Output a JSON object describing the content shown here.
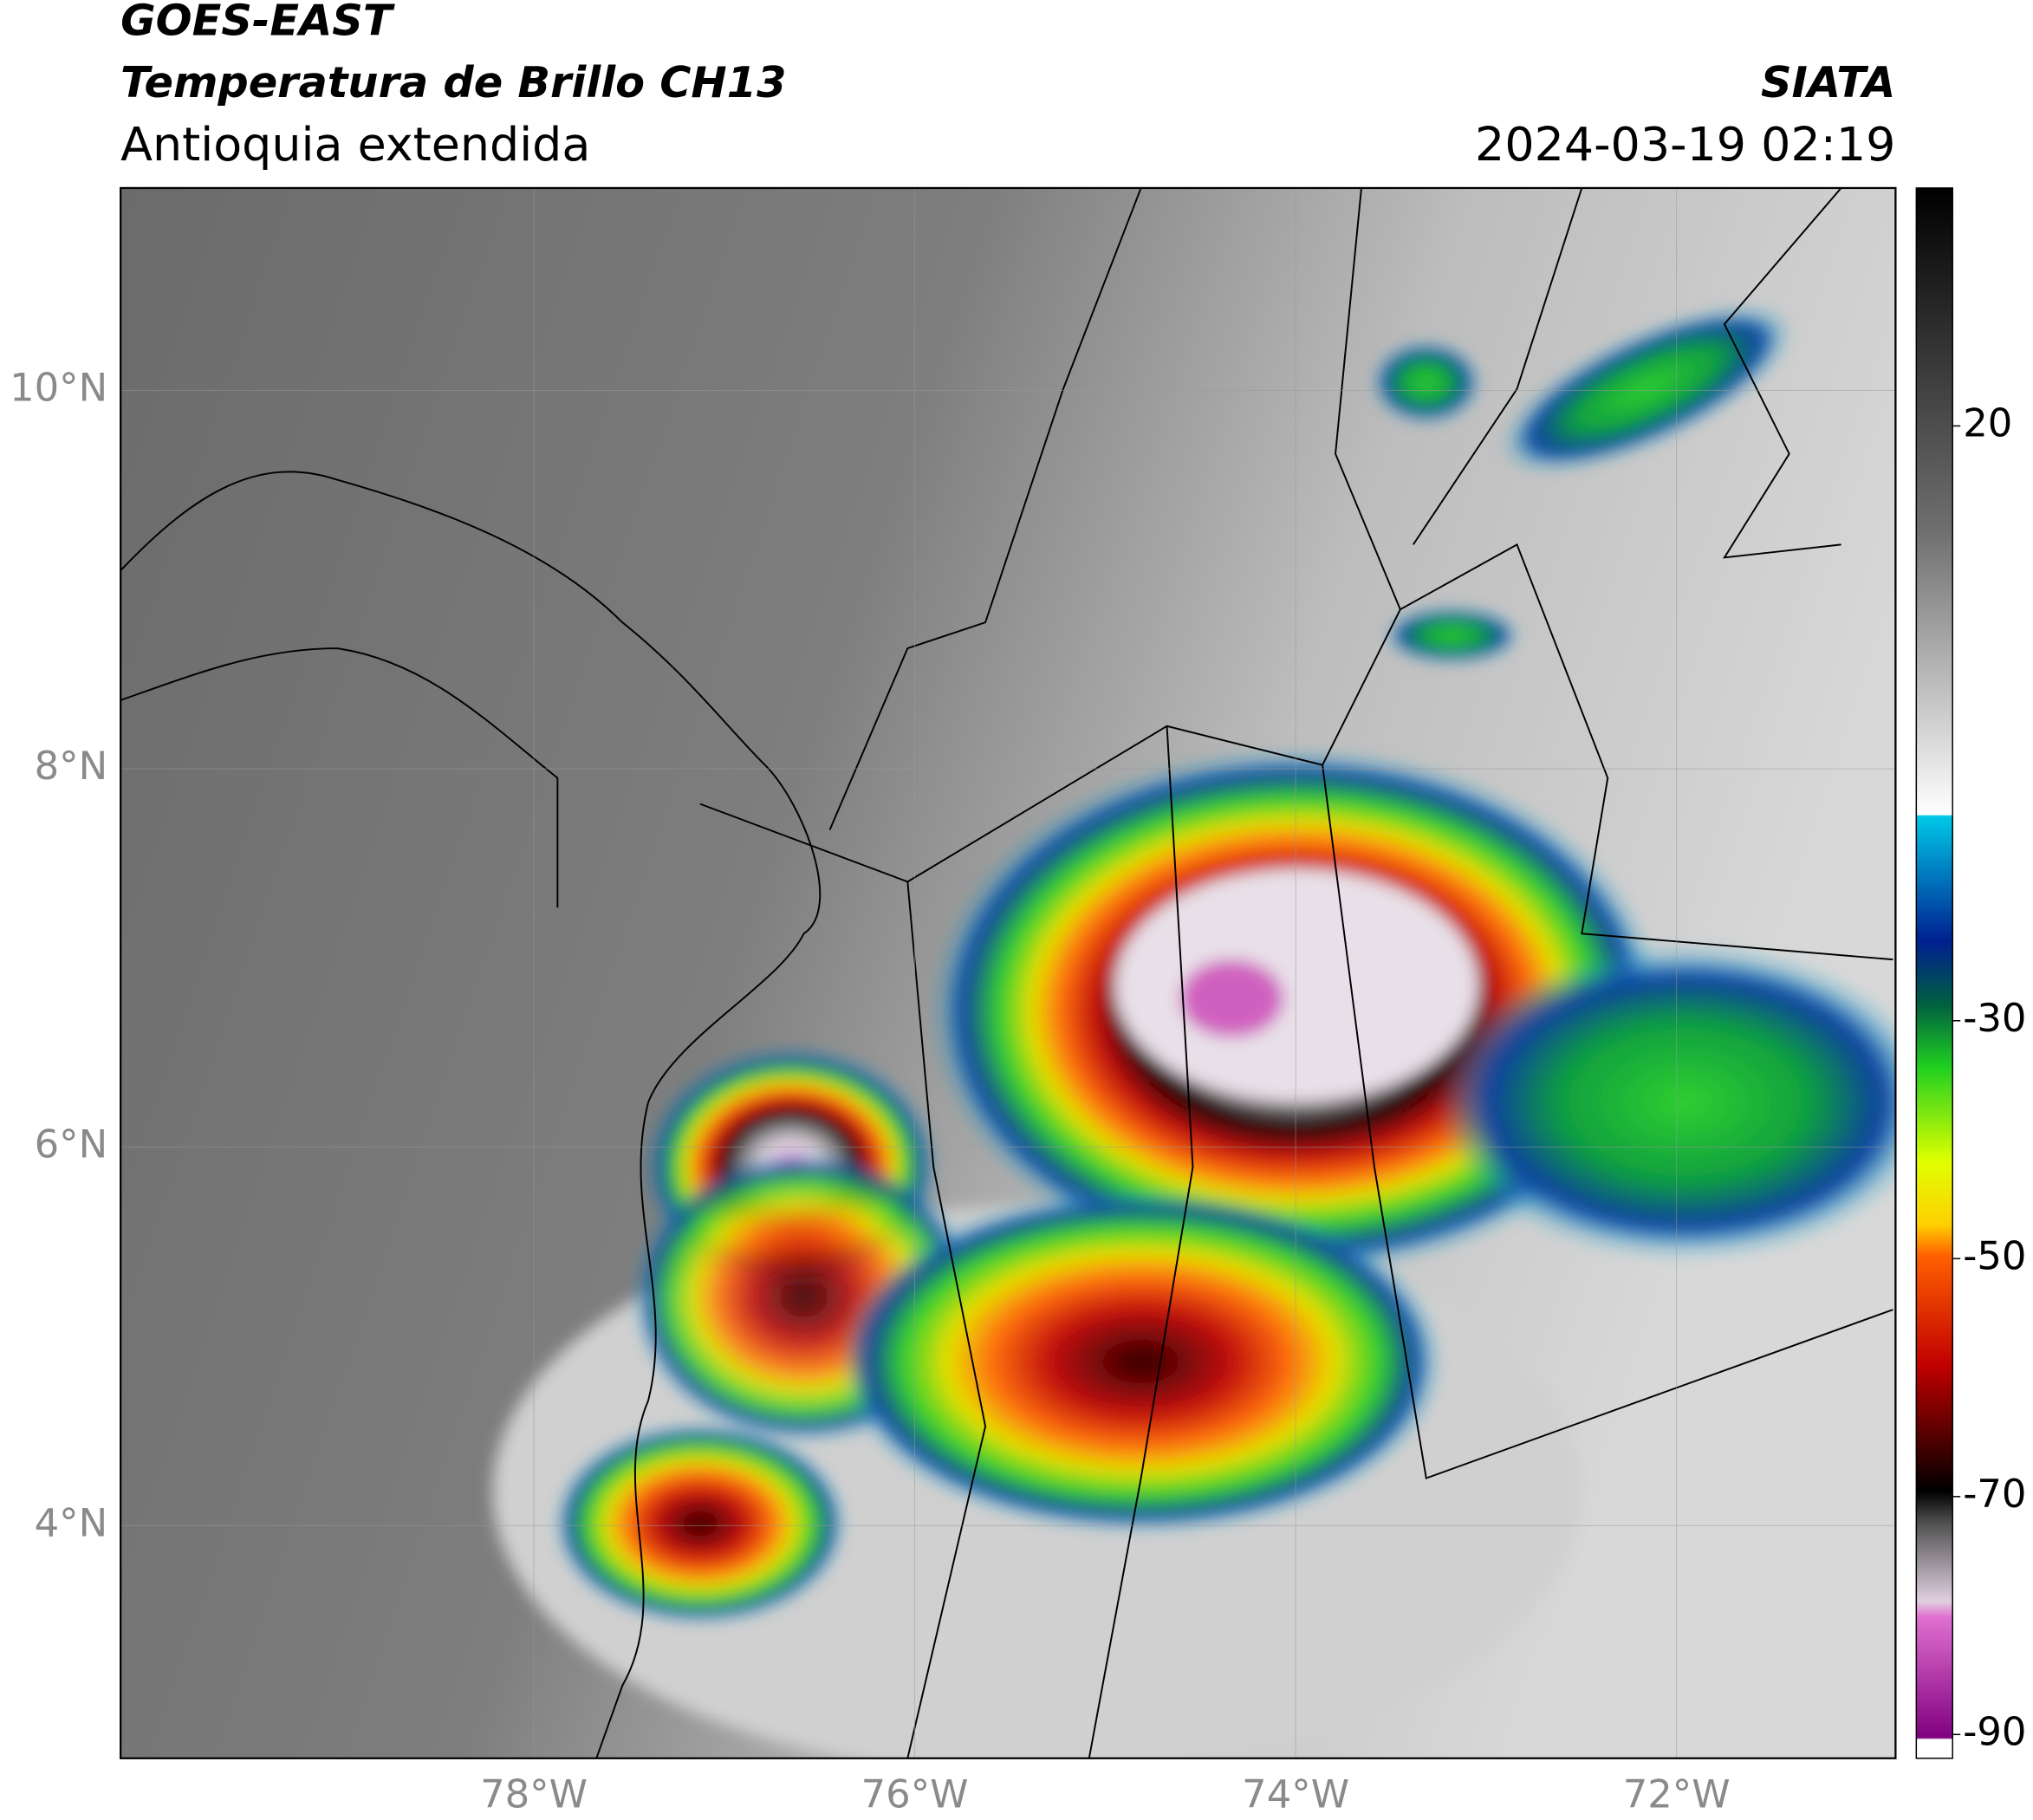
{
  "header": {
    "title": "GOES-EAST",
    "subtitle": "Temperatura de Brillo CH13",
    "region": "Antioquia extendida",
    "source": "SIATA",
    "datetime": "2024-03-19 02:19"
  },
  "map": {
    "xlim": [
      -80.17,
      -70.85
    ],
    "ylim": [
      2.77,
      11.07
    ],
    "xticks": [
      {
        "value": -78,
        "label": "78°W"
      },
      {
        "value": -76,
        "label": "76°W"
      },
      {
        "value": -74,
        "label": "74°W"
      },
      {
        "value": -72,
        "label": "72°W"
      }
    ],
    "yticks": [
      {
        "value": 10,
        "label": "10°N"
      },
      {
        "value": 8,
        "label": "8°N"
      },
      {
        "value": 6,
        "label": "6°N"
      },
      {
        "value": 4,
        "label": "4°N"
      }
    ],
    "grid": true
  },
  "colorbar": {
    "lim": [
      -92,
      40
    ],
    "ticks": [
      20,
      -30,
      -50,
      -70,
      -90
    ]
  }
}
